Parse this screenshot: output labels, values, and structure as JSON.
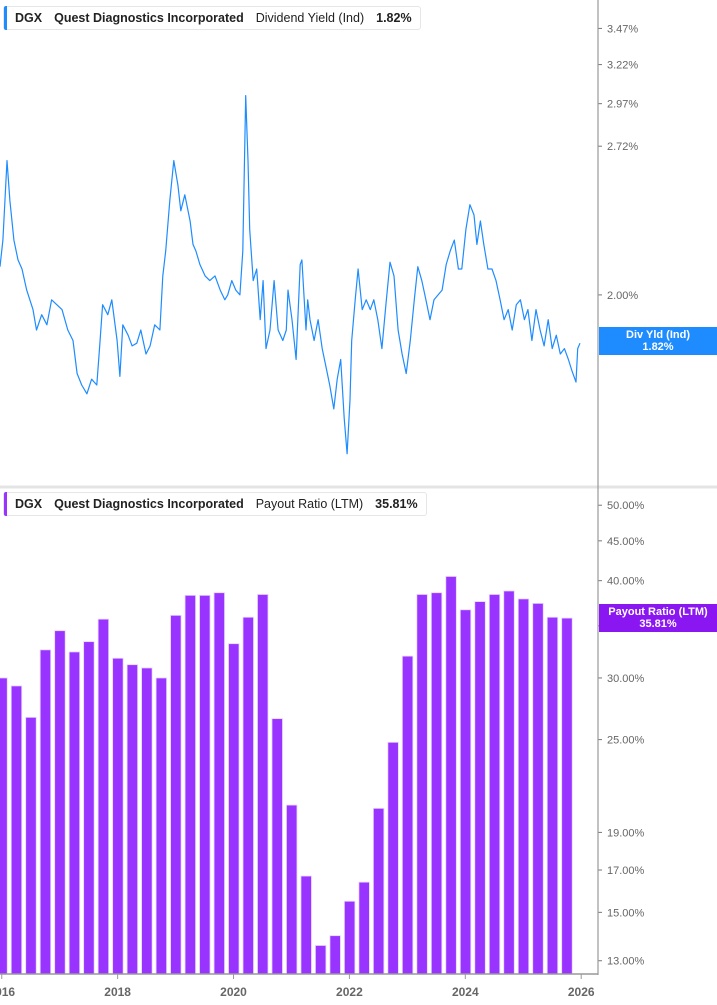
{
  "colors": {
    "dividend": "#1e8cff",
    "payout": "#9933ff",
    "payout_badge": "#8a16f2",
    "axis": "#999999"
  },
  "top_legend": {
    "ticker": "DGX",
    "company": "Quest Diagnostics Incorporated",
    "metric": "Dividend Yield (Ind)",
    "value": "1.82%"
  },
  "bottom_legend": {
    "ticker": "DGX",
    "company": "Quest Diagnostics Incorporated",
    "metric": "Payout Ratio (LTM)",
    "value": "35.81%"
  },
  "top_badge": {
    "label": "Div Yld (Ind)",
    "value": "1.82%"
  },
  "bottom_badge": {
    "label": "Payout Ratio (LTM)",
    "value": "35.81%"
  },
  "chart_data": [
    {
      "type": "line",
      "scale": "log",
      "grid": false,
      "xlim": [
        2015.97,
        2026.29
      ],
      "ylim": [
        1.35,
        3.68
      ],
      "yticks": [
        3.47,
        3.22,
        2.97,
        2.72,
        2.0
      ],
      "ytick_labels": [
        "3.47%",
        "3.22%",
        "2.97%",
        "2.72%",
        "2.00%"
      ],
      "series": [
        {
          "name": "Dividend Yield (Ind)",
          "x": [
            2015.97,
            2016.02,
            2016.09,
            2016.14,
            2016.21,
            2016.28,
            2016.35,
            2016.43,
            2016.54,
            2016.6,
            2016.69,
            2016.78,
            2016.86,
            2016.95,
            2017.04,
            2017.14,
            2017.23,
            2017.3,
            2017.38,
            2017.47,
            2017.55,
            2017.64,
            2017.69,
            2017.74,
            2017.83,
            2017.9,
            2017.99,
            2018.04,
            2018.09,
            2018.18,
            2018.25,
            2018.33,
            2018.4,
            2018.49,
            2018.56,
            2018.64,
            2018.73,
            2018.78,
            2018.83,
            2018.9,
            2018.97,
            2019.04,
            2019.09,
            2019.16,
            2019.25,
            2019.3,
            2019.35,
            2019.42,
            2019.51,
            2019.59,
            2019.68,
            2019.77,
            2019.85,
            2019.9,
            2019.97,
            2020.04,
            2020.11,
            2020.16,
            2020.21,
            2020.25,
            2020.28,
            2020.34,
            2020.4,
            2020.46,
            2020.51,
            2020.56,
            2020.63,
            2020.7,
            2020.77,
            2020.85,
            2020.91,
            2020.94,
            2021.01,
            2021.08,
            2021.15,
            2021.18,
            2021.25,
            2021.28,
            2021.32,
            2021.39,
            2021.46,
            2021.53,
            2021.6,
            2021.66,
            2021.73,
            2021.79,
            2021.85,
            2021.91,
            2021.96,
            2022.01,
            2022.04,
            2022.1,
            2022.15,
            2022.22,
            2022.29,
            2022.36,
            2022.42,
            2022.49,
            2022.56,
            2022.63,
            2022.7,
            2022.77,
            2022.84,
            2022.91,
            2022.98,
            2023.05,
            2023.12,
            2023.18,
            2023.25,
            2023.32,
            2023.39,
            2023.46,
            2023.53,
            2023.6,
            2023.67,
            2023.74,
            2023.81,
            2023.88,
            2023.94,
            2024.01,
            2024.08,
            2024.15,
            2024.2,
            2024.26,
            2024.32,
            2024.39,
            2024.46,
            2024.53,
            2024.6,
            2024.67,
            2024.74,
            2024.81,
            2024.88,
            2024.95,
            2025.02,
            2025.08,
            2025.15,
            2025.22,
            2025.29,
            2025.36,
            2025.43,
            2025.5,
            2025.57,
            2025.64,
            2025.71,
            2025.78,
            2025.84,
            2025.91,
            2025.94,
            2025.98
          ],
          "y": [
            2.12,
            2.24,
            2.64,
            2.43,
            2.24,
            2.15,
            2.11,
            2.02,
            1.94,
            1.86,
            1.92,
            1.88,
            1.98,
            1.96,
            1.94,
            1.86,
            1.82,
            1.7,
            1.66,
            1.63,
            1.68,
            1.66,
            1.8,
            1.96,
            1.92,
            1.98,
            1.82,
            1.69,
            1.88,
            1.84,
            1.8,
            1.81,
            1.86,
            1.77,
            1.8,
            1.88,
            1.86,
            2.08,
            2.19,
            2.43,
            2.64,
            2.51,
            2.38,
            2.46,
            2.33,
            2.22,
            2.19,
            2.13,
            2.08,
            2.06,
            2.08,
            2.02,
            1.98,
            2.0,
            2.06,
            2.02,
            2.0,
            2.19,
            3.02,
            2.64,
            2.29,
            2.06,
            2.11,
            1.9,
            2.06,
            1.79,
            1.86,
            2.06,
            1.86,
            1.82,
            1.86,
            2.02,
            1.9,
            1.75,
            2.13,
            2.15,
            1.86,
            1.98,
            1.9,
            1.82,
            1.9,
            1.79,
            1.72,
            1.66,
            1.58,
            1.68,
            1.75,
            1.55,
            1.44,
            1.61,
            1.82,
            1.98,
            2.11,
            1.94,
            1.98,
            1.94,
            1.98,
            1.9,
            1.79,
            1.96,
            2.14,
            2.08,
            1.86,
            1.77,
            1.7,
            1.82,
            1.98,
            2.12,
            2.06,
            1.98,
            1.9,
            1.98,
            2.0,
            2.02,
            2.13,
            2.19,
            2.24,
            2.11,
            2.11,
            2.29,
            2.41,
            2.36,
            2.22,
            2.33,
            2.22,
            2.11,
            2.11,
            2.06,
            1.98,
            1.9,
            1.94,
            1.86,
            1.96,
            1.98,
            1.9,
            1.94,
            1.82,
            1.94,
            1.86,
            1.8,
            1.9,
            1.79,
            1.84,
            1.77,
            1.79,
            1.75,
            1.71,
            1.67,
            1.79,
            1.81
          ]
        }
      ]
    },
    {
      "type": "bar",
      "scale": "log",
      "grid": false,
      "xlim": [
        2015.97,
        2026.29
      ],
      "ylim": [
        12.5,
        52.3
      ],
      "yticks": [
        50,
        45,
        40,
        35,
        30,
        25,
        19,
        17,
        15,
        13
      ],
      "ytick_labels": [
        "50.00%",
        "45.00%",
        "40.00%",
        "35.00%",
        "30.00%",
        "25.00%",
        "19.00%",
        "17.00%",
        "15.00%",
        "13.00%"
      ],
      "xticks": [
        2016,
        2018,
        2020,
        2022,
        2024,
        2026
      ],
      "xtick_labels": [
        "2016",
        "2018",
        "2020",
        "2022",
        "2024",
        "2026"
      ],
      "series": [
        {
          "name": "Payout Ratio (LTM)",
          "x": [
            2016.0,
            2016.25,
            2016.5,
            2016.75,
            2017.0,
            2017.25,
            2017.5,
            2017.75,
            2018.0,
            2018.25,
            2018.5,
            2018.75,
            2019.0,
            2019.25,
            2019.5,
            2019.75,
            2020.0,
            2020.25,
            2020.5,
            2020.75,
            2021.0,
            2021.25,
            2021.5,
            2021.75,
            2022.0,
            2022.25,
            2022.5,
            2022.75,
            2023.0,
            2023.25,
            2023.5,
            2023.75,
            2024.0,
            2024.25,
            2024.5,
            2024.75,
            2025.0,
            2025.25,
            2025.5,
            2025.75
          ],
          "values": [
            30.0,
            29.3,
            26.7,
            32.6,
            34.5,
            32.4,
            33.4,
            35.7,
            31.8,
            31.2,
            30.9,
            30.0,
            36.1,
            38.3,
            38.3,
            38.6,
            33.2,
            35.9,
            38.4,
            26.6,
            20.6,
            16.7,
            13.6,
            14.0,
            15.5,
            16.4,
            20.4,
            24.8,
            32.0,
            38.4,
            38.6,
            40.5,
            36.7,
            37.6,
            38.4,
            38.8,
            37.9,
            37.4,
            35.9,
            35.81
          ]
        }
      ]
    }
  ]
}
